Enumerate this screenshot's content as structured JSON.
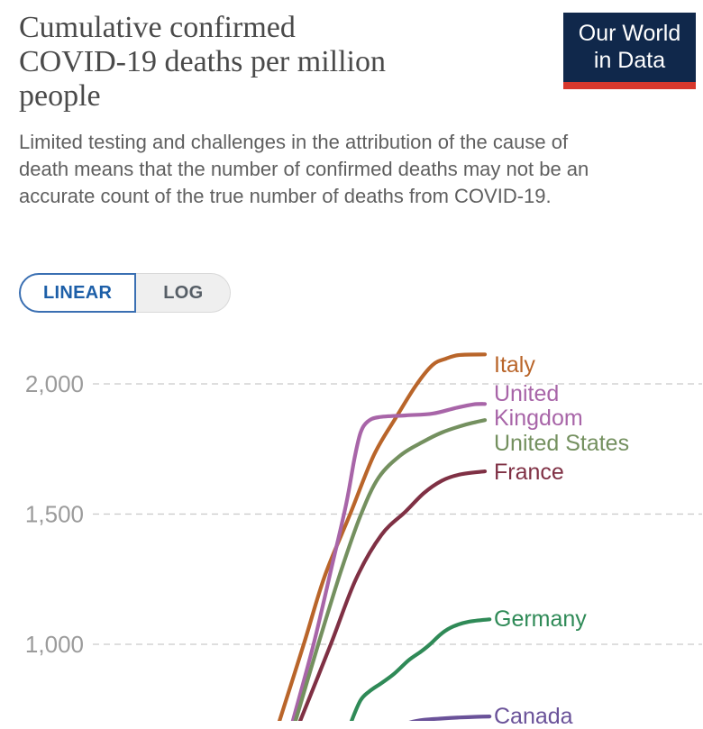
{
  "header": {
    "title_lines": [
      "Cumulative confirmed",
      "COVID-19 deaths per million",
      "people"
    ],
    "subtitle": "Limited testing and challenges in the attribution of the cause of death means that the number of confirmed deaths may not be an accurate count of the true number of deaths from COVID-19.",
    "logo": {
      "line1": "Our World",
      "line2": "in Data",
      "bg_color": "#10284b",
      "accent_color": "#d7382d",
      "text_color": "#ffffff"
    }
  },
  "controls": {
    "scale_toggle": {
      "linear_label": "LINEAR",
      "log_label": "LOG",
      "selected": "LINEAR",
      "active_color": "#1d5fa8",
      "inactive_color": "#565e66"
    }
  },
  "chart_data": {
    "type": "line",
    "title": "Cumulative confirmed COVID-19 deaths per million people",
    "ylabel": "Cumulative confirmed COVID-19 deaths per million people",
    "grid": "dashed horizontal",
    "legend_position": "right-edge entity labels",
    "x_axis_visible": false,
    "x_axis_note": "time axis cropped out of view at bottom of screenshot",
    "visible_y_range": [
      700,
      2150
    ],
    "y_ticks": [
      {
        "value": 2000,
        "label": "2,000"
      },
      {
        "value": 1500,
        "label": "1,500"
      },
      {
        "value": 1000,
        "label": "1,000"
      }
    ],
    "series": [
      {
        "name": "Italy",
        "label": "Italy",
        "color": "#b9652a",
        "end_value": 2113,
        "points": [
          [
            0.468,
            670
          ],
          [
            0.476,
            706
          ],
          [
            0.538,
            1000
          ],
          [
            0.591,
            1260
          ],
          [
            0.655,
            1495
          ],
          [
            0.717,
            1727
          ],
          [
            0.775,
            1875
          ],
          [
            0.825,
            1996
          ],
          [
            0.867,
            2073
          ],
          [
            0.901,
            2097
          ],
          [
            0.936,
            2111
          ],
          [
            1.0,
            2113
          ]
        ]
      },
      {
        "name": "United Kingdom",
        "label": "United\nKingdom",
        "color": "#a865a8",
        "end_value": 1923,
        "points": [
          [
            0.503,
            670
          ],
          [
            0.51,
            706
          ],
          [
            0.563,
            1000
          ],
          [
            0.609,
            1295
          ],
          [
            0.646,
            1537
          ],
          [
            0.667,
            1710
          ],
          [
            0.683,
            1813
          ],
          [
            0.701,
            1855
          ],
          [
            0.729,
            1872
          ],
          [
            0.798,
            1879
          ],
          [
            0.867,
            1886
          ],
          [
            0.924,
            1907
          ],
          [
            0.97,
            1921
          ],
          [
            1.0,
            1923
          ]
        ]
      },
      {
        "name": "United States",
        "label": "United States",
        "color": "#74905f",
        "end_value": 1861,
        "points": [
          [
            0.51,
            670
          ],
          [
            0.517,
            706
          ],
          [
            0.575,
            1000
          ],
          [
            0.632,
            1277
          ],
          [
            0.683,
            1495
          ],
          [
            0.729,
            1640
          ],
          [
            0.786,
            1727
          ],
          [
            0.844,
            1779
          ],
          [
            0.89,
            1813
          ],
          [
            0.936,
            1837
          ],
          [
            0.97,
            1851
          ],
          [
            1.0,
            1861
          ]
        ]
      },
      {
        "name": "France",
        "label": "France",
        "color": "#7f3044",
        "end_value": 1664,
        "points": [
          [
            0.521,
            670
          ],
          [
            0.529,
            706
          ],
          [
            0.607,
            1000
          ],
          [
            0.671,
            1250
          ],
          [
            0.736,
            1420
          ],
          [
            0.798,
            1510
          ],
          [
            0.844,
            1580
          ],
          [
            0.89,
            1628
          ],
          [
            0.936,
            1652
          ],
          [
            1.0,
            1664
          ]
        ]
      },
      {
        "name": "Germany",
        "label": "Germany",
        "color": "#2f8a57",
        "end_value": 1096,
        "points": [
          [
            0.652,
            670
          ],
          [
            0.66,
            706
          ],
          [
            0.683,
            785
          ],
          [
            0.706,
            820
          ],
          [
            0.736,
            851
          ],
          [
            0.768,
            886
          ],
          [
            0.805,
            938
          ],
          [
            0.837,
            972
          ],
          [
            0.86,
            1000
          ],
          [
            0.89,
            1042
          ],
          [
            0.92,
            1069
          ],
          [
            0.959,
            1087
          ],
          [
            1.012,
            1096
          ]
        ]
      },
      {
        "name": "Canada",
        "label": "Canada",
        "color": "#6a5299",
        "end_value": 723,
        "points": [
          [
            0.795,
            688
          ],
          [
            0.809,
            700
          ],
          [
            0.844,
            710
          ],
          [
            0.89,
            715
          ],
          [
            0.936,
            719
          ],
          [
            1.012,
            723
          ]
        ]
      }
    ]
  }
}
